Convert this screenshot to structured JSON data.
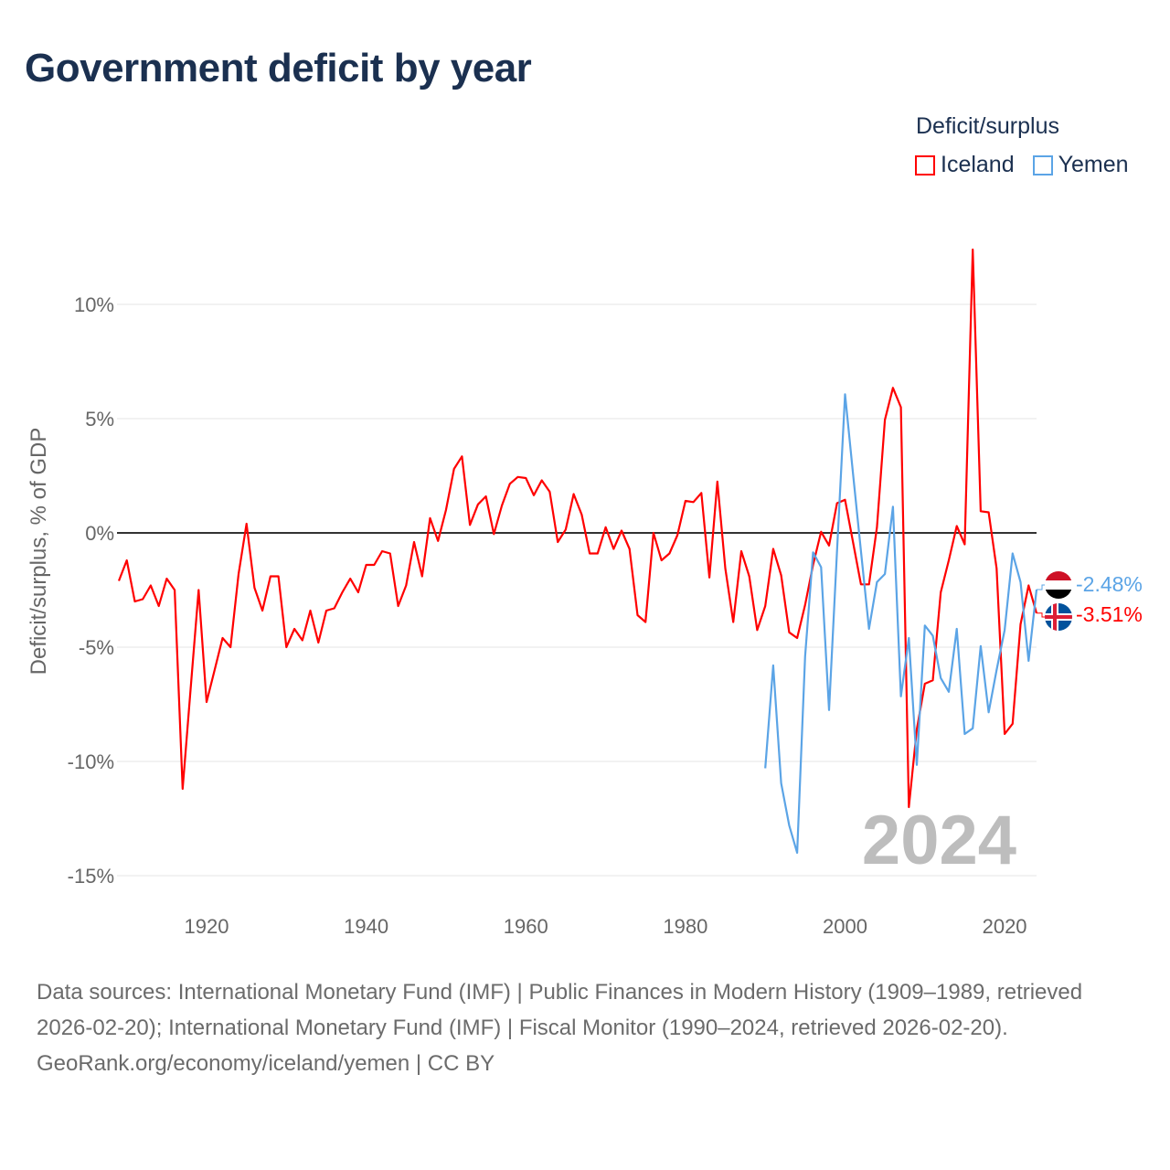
{
  "title": "Government deficit by year",
  "legend": {
    "title": "Deficit/surplus",
    "items": [
      {
        "label": "Iceland",
        "color": "#ff0000"
      },
      {
        "label": "Yemen",
        "color": "#5ba4e6"
      }
    ]
  },
  "year_watermark": "2024",
  "footer": {
    "sources": "Data sources: International Monetary Fund (IMF) | Public Finances in Modern History (1909–1989, retrieved 2026-02-20); International Monetary Fund (IMF) | Fiscal Monitor (1990–2024, retrieved 2026-02-20).",
    "credit": "GeoRank.org/economy/iceland/yemen | CC BY"
  },
  "chart_data": {
    "type": "line",
    "title": "Government deficit by year",
    "xlabel": "",
    "ylabel": "Deficit/surplus, % of GDP",
    "xlim": [
      1909,
      2024
    ],
    "ylim": [
      -15,
      12.5
    ],
    "x_ticks": [
      1920,
      1940,
      1960,
      1980,
      2000,
      2020
    ],
    "y_ticks": [
      {
        "v": 10,
        "label": "10%"
      },
      {
        "v": 5,
        "label": "5%"
      },
      {
        "v": 0,
        "label": "0%"
      },
      {
        "v": -5,
        "label": "-5%"
      },
      {
        "v": -10,
        "label": "-10%"
      },
      {
        "v": -15,
        "label": "-15%"
      }
    ],
    "grid": true,
    "legend_position": "top-right",
    "series": [
      {
        "name": "Iceland",
        "color": "#ff0000",
        "end_label": "-3.51%",
        "start_year": 1909,
        "values": [
          -2.1,
          -1.2,
          -3.0,
          -2.9,
          -2.3,
          -3.2,
          -2.0,
          -2.5,
          -11.2,
          -6.8,
          -2.5,
          -7.4,
          -6.0,
          -4.6,
          -5.0,
          -1.8,
          0.4,
          -2.4,
          -3.4,
          -1.9,
          -1.9,
          -5.0,
          -4.2,
          -4.7,
          -3.4,
          -4.8,
          -3.4,
          -3.3,
          -2.6,
          -2.0,
          -2.6,
          -1.4,
          -1.4,
          -0.8,
          -0.9,
          -3.2,
          -2.3,
          -0.4,
          -1.9,
          0.65,
          -0.35,
          1.0,
          2.8,
          3.35,
          0.35,
          1.25,
          1.6,
          -0.05,
          1.2,
          2.15,
          2.45,
          2.4,
          1.65,
          2.3,
          1.8,
          -0.4,
          0.15,
          1.7,
          0.8,
          -0.9,
          -0.9,
          0.25,
          -0.7,
          0.1,
          -0.7,
          -3.6,
          -3.9,
          0,
          -1.2,
          -0.9,
          -0.1,
          1.4,
          1.35,
          1.75,
          -1.95,
          2.25,
          -1.55,
          -3.9,
          -0.8,
          -1.9,
          -4.25,
          -3.2,
          -0.7,
          -1.85,
          -4.35,
          -4.6,
          -3.15,
          -1.4,
          0.05,
          -0.55,
          1.3,
          1.45,
          -0.4,
          -2.25,
          -2.25,
          0.25,
          4.95,
          6.35,
          5.5,
          -12.0,
          -8.6,
          -6.6,
          -6.45,
          -2.6,
          -1.2,
          0.3,
          -0.5,
          12.4,
          0.95,
          0.9,
          -1.55,
          -8.8,
          -8.35,
          -4.0,
          -2.3,
          -3.51
        ]
      },
      {
        "name": "Yemen",
        "color": "#5ba4e6",
        "end_label": "-2.48%",
        "start_year": 1990,
        "values": [
          -10.3,
          -5.8,
          -10.95,
          -12.8,
          -14.0,
          -5.4,
          -0.85,
          -1.5,
          -7.75,
          -0.8,
          6.07,
          2.6,
          -0.8,
          -4.2,
          -2.15,
          -1.8,
          1.15,
          -7.15,
          -4.6,
          -10.15,
          -4.05,
          -4.5,
          -6.35,
          -6.95,
          -4.2,
          -8.8,
          -8.55,
          -4.95,
          -7.85,
          -6.0,
          -4.25,
          -0.9,
          -2.15,
          -5.6,
          -2.48
        ]
      }
    ]
  }
}
